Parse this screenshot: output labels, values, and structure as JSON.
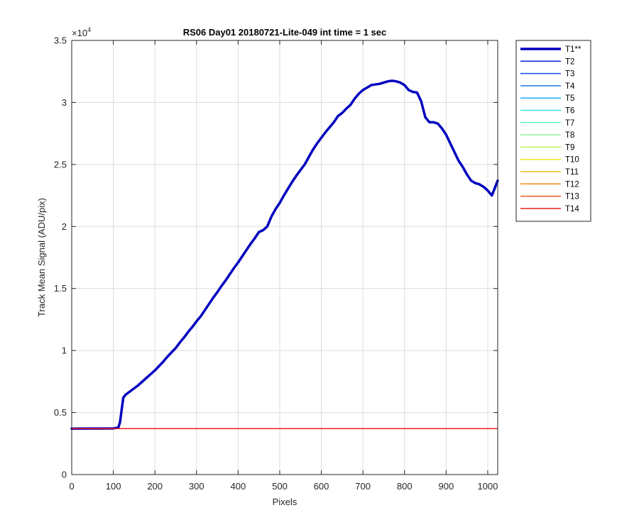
{
  "chart_data": {
    "type": "line",
    "title": "RS06 Day01 20180721-Lite-049 int time = 1 sec",
    "xlabel": "Pixels",
    "ylabel": "Track Mean Signal (ADU/pix)",
    "xlim": [
      0,
      1024
    ],
    "ylim": [
      0,
      35000
    ],
    "y_exponent_label": "×10",
    "y_exponent_power": "4",
    "xticks": [
      0,
      100,
      200,
      300,
      400,
      500,
      600,
      700,
      800,
      900,
      1000
    ],
    "xtick_labels": [
      "0",
      "100",
      "200",
      "300",
      "400",
      "500",
      "600",
      "700",
      "800",
      "900",
      "1000"
    ],
    "yticks": [
      0,
      5000,
      10000,
      15000,
      20000,
      25000,
      30000,
      35000
    ],
    "ytick_labels": [
      "0",
      "0.5",
      "1",
      "1.5",
      "2",
      "2.5",
      "3",
      "3.5"
    ],
    "grid": true,
    "legend_position": "outside-top-right",
    "series": [
      {
        "name": "T1**",
        "color": "#0000bf",
        "width": 3.5,
        "x": [
          0,
          100,
          112,
          116,
          120,
          124,
          130,
          140,
          150,
          160,
          170,
          180,
          190,
          200,
          210,
          220,
          230,
          240,
          250,
          260,
          270,
          280,
          290,
          300,
          310,
          320,
          330,
          340,
          350,
          360,
          370,
          380,
          390,
          400,
          410,
          420,
          430,
          440,
          450,
          460,
          470,
          480,
          490,
          500,
          510,
          520,
          530,
          540,
          550,
          560,
          570,
          580,
          590,
          600,
          610,
          620,
          630,
          640,
          650,
          660,
          670,
          680,
          690,
          700,
          710,
          720,
          730,
          740,
          750,
          760,
          770,
          780,
          790,
          800,
          810,
          820,
          830,
          840,
          850,
          860,
          870,
          880,
          890,
          900,
          910,
          920,
          930,
          940,
          950,
          960,
          970,
          980,
          990,
          1000,
          1010,
          1024
        ],
        "values": [
          3700,
          3720,
          3780,
          4200,
          5200,
          6200,
          6450,
          6700,
          6950,
          7200,
          7500,
          7800,
          8100,
          8400,
          8750,
          9100,
          9500,
          9850,
          10200,
          10650,
          11050,
          11500,
          11900,
          12350,
          12750,
          13250,
          13750,
          14250,
          14700,
          15200,
          15650,
          16150,
          16650,
          17100,
          17600,
          18100,
          18600,
          19050,
          19550,
          19700,
          20000,
          20800,
          21400,
          21900,
          22500,
          23050,
          23600,
          24100,
          24550,
          25000,
          25600,
          26200,
          26700,
          27150,
          27600,
          28000,
          28400,
          28900,
          29150,
          29500,
          29800,
          30300,
          30700,
          31000,
          31200,
          31400,
          31450,
          31500,
          31600,
          31700,
          31750,
          31700,
          31600,
          31400,
          31000,
          30850,
          30800,
          30100,
          28800,
          28400,
          28400,
          28300,
          27900,
          27400,
          26700,
          26000,
          25300,
          24800,
          24200,
          23700,
          23500,
          23400,
          23200,
          22900,
          22500,
          23700
        ]
      },
      {
        "name": "T2",
        "color": "#0d24d8",
        "width": 1.2,
        "x": [
          0,
          1024
        ],
        "values": [
          3700,
          3700
        ]
      },
      {
        "name": "T3",
        "color": "#1448e8",
        "width": 1.2,
        "x": [
          0,
          1024
        ],
        "values": [
          3700,
          3700
        ]
      },
      {
        "name": "T4",
        "color": "#1e78ef",
        "width": 1.2,
        "x": [
          0,
          1024
        ],
        "values": [
          3700,
          3700
        ]
      },
      {
        "name": "T5",
        "color": "#1fb0f3",
        "width": 1.2,
        "x": [
          0,
          1024
        ],
        "values": [
          3700,
          3700
        ]
      },
      {
        "name": "T6",
        "color": "#2be2ef",
        "width": 1.2,
        "x": [
          0,
          1024
        ],
        "values": [
          3700,
          3700
        ]
      },
      {
        "name": "T7",
        "color": "#5fefc9",
        "width": 1.2,
        "x": [
          0,
          1024
        ],
        "values": [
          3700,
          3700
        ]
      },
      {
        "name": "T8",
        "color": "#8ff29a",
        "width": 1.2,
        "x": [
          0,
          1024
        ],
        "values": [
          3700,
          3700
        ]
      },
      {
        "name": "T9",
        "color": "#c2f25c",
        "width": 1.2,
        "x": [
          0,
          1024
        ],
        "values": [
          3700,
          3700
        ]
      },
      {
        "name": "T10",
        "color": "#f2e81c",
        "width": 1.2,
        "x": [
          0,
          1024
        ],
        "values": [
          3700,
          3700
        ]
      },
      {
        "name": "T11",
        "color": "#f5b81a",
        "width": 1.2,
        "x": [
          0,
          1024
        ],
        "values": [
          3700,
          3700
        ]
      },
      {
        "name": "T12",
        "color": "#f58a1a",
        "width": 1.2,
        "x": [
          0,
          1024
        ],
        "values": [
          3700,
          3700
        ]
      },
      {
        "name": "T13",
        "color": "#f05a1c",
        "width": 1.2,
        "x": [
          0,
          1024
        ],
        "values": [
          3700,
          3700
        ]
      },
      {
        "name": "T14",
        "color": "#e81e1e",
        "width": 1.5,
        "x": [
          0,
          1024
        ],
        "values": [
          3700,
          3700
        ]
      }
    ]
  }
}
